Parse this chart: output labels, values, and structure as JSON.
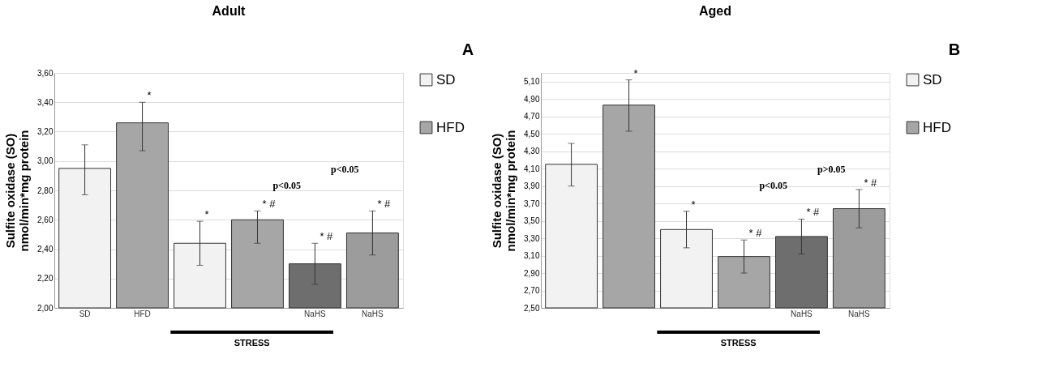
{
  "chart_data": [
    {
      "type": "bar",
      "title": "Adult",
      "categories": [
        "SD",
        "HFD",
        null,
        null,
        "NaHS",
        "NaHS"
      ],
      "ylabel": "Sulfite oxidase (SO)\nnmol/min*mg protein",
      "ylim": [
        2.0,
        3.6
      ],
      "yticks": [
        {
          "value": 2.0,
          "label": "2,00"
        },
        {
          "value": 2.2,
          "label": "2,20"
        },
        {
          "value": 2.4,
          "label": "2,40"
        },
        {
          "value": 2.6,
          "label": "2,60"
        },
        {
          "value": 2.8,
          "label": "2,80"
        },
        {
          "value": 3.0,
          "label": "3,00"
        },
        {
          "value": 3.2,
          "label": "3,20"
        },
        {
          "value": 3.4,
          "label": "3,40"
        },
        {
          "value": 3.6,
          "label": "3,60"
        }
      ],
      "grid": "y",
      "legend": "right",
      "annotations": [
        "A",
        "p<0.05",
        "p<0.05",
        "STRESS"
      ],
      "series": [
        {
          "name": "SD",
          "color": "#f2f2f2",
          "colors": [
            "#f2f2f2",
            null,
            "#f2f2f2",
            null,
            "#6e6e6e",
            null
          ],
          "values": [
            2.95,
            null,
            2.44,
            null,
            2.3,
            null
          ],
          "errors": [
            [
              2.77,
              3.11
            ],
            null,
            [
              2.29,
              2.59
            ],
            null,
            [
              2.16,
              2.44
            ],
            null
          ],
          "value_labels": [
            null,
            null,
            "*",
            null,
            "* #",
            null
          ]
        },
        {
          "name": "HFD",
          "color": "#a6a6a6",
          "colors": [
            null,
            "#a6a6a6",
            null,
            "#a6a6a6",
            null,
            "#9c9c9c"
          ],
          "values": [
            null,
            3.26,
            null,
            2.6,
            null,
            2.51
          ],
          "errors": [
            null,
            [
              3.07,
              3.4
            ],
            null,
            [
              2.44,
              2.66
            ],
            null,
            [
              2.36,
              2.66
            ]
          ],
          "value_labels": [
            null,
            "*",
            null,
            "* #",
            null,
            "* #"
          ]
        }
      ]
    },
    {
      "type": "bar",
      "title": "Aged",
      "categories": [
        null,
        null,
        null,
        null,
        "NaHS",
        "NaHS"
      ],
      "ylabel": "Sulfite oxidase (SO)\nnmol/min*mg protein",
      "ylim": [
        2.5,
        5.2
      ],
      "yticks": [
        {
          "value": 2.5,
          "label": "2,50"
        },
        {
          "value": 2.7,
          "label": "2,70"
        },
        {
          "value": 2.9,
          "label": "2,90"
        },
        {
          "value": 3.1,
          "label": "3,10"
        },
        {
          "value": 3.3,
          "label": "3,30"
        },
        {
          "value": 3.5,
          "label": "3,50"
        },
        {
          "value": 3.7,
          "label": "3,70"
        },
        {
          "value": 3.9,
          "label": "3,90"
        },
        {
          "value": 4.1,
          "label": "4,10"
        },
        {
          "value": 4.3,
          "label": "4,30"
        },
        {
          "value": 4.5,
          "label": "4,50"
        },
        {
          "value": 4.7,
          "label": "4,70"
        },
        {
          "value": 4.9,
          "label": "4,90"
        },
        {
          "value": 5.1,
          "label": "5,10"
        }
      ],
      "grid": "y",
      "legend": "right",
      "annotations": [
        "B",
        "p<0.05",
        "p>0.05",
        "STRESS"
      ],
      "series": [
        {
          "name": "SD",
          "color": "#f2f2f2",
          "colors": [
            "#f2f2f2",
            null,
            "#f2f2f2",
            null,
            "#6e6e6e",
            null
          ],
          "values": [
            4.15,
            null,
            3.4,
            null,
            3.32,
            null
          ],
          "errors": [
            [
              3.9,
              4.39
            ],
            null,
            [
              3.19,
              3.61
            ],
            null,
            [
              3.12,
              3.52
            ],
            null
          ],
          "value_labels": [
            null,
            null,
            "*",
            null,
            "* #",
            null
          ]
        },
        {
          "name": "HFD",
          "color": "#a6a6a6",
          "colors": [
            null,
            "#a6a6a6",
            null,
            "#a6a6a6",
            null,
            "#9c9c9c"
          ],
          "values": [
            null,
            4.83,
            null,
            3.09,
            null,
            3.64
          ],
          "errors": [
            null,
            [
              4.53,
              5.12
            ],
            null,
            [
              2.9,
              3.28
            ],
            null,
            [
              3.42,
              3.86
            ]
          ],
          "value_labels": [
            null,
            "*",
            null,
            "* #",
            null,
            "* #"
          ]
        }
      ]
    }
  ]
}
